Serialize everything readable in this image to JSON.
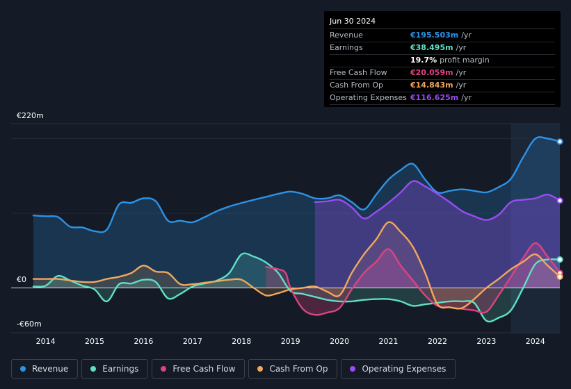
{
  "tooltip": {
    "date": "Jun 30 2024",
    "rows": [
      {
        "label": "Revenue",
        "value": "€195.503m",
        "unit": "/yr",
        "color": "#2d93e6"
      },
      {
        "label": "Earnings",
        "value": "€38.495m",
        "unit": "/yr",
        "color": "#5fe0c5"
      },
      {
        "label": "",
        "value": "19.7%",
        "unit": "profit margin",
        "color": "#ffffff"
      },
      {
        "label": "Free Cash Flow",
        "value": "€20.059m",
        "unit": "/yr",
        "color": "#d9457f"
      },
      {
        "label": "Cash From Op",
        "value": "€14.843m",
        "unit": "/yr",
        "color": "#f0a85c"
      },
      {
        "label": "Operating Expenses",
        "value": "€116.625m",
        "unit": "/yr",
        "color": "#9b4bf2"
      }
    ]
  },
  "legend": [
    {
      "label": "Revenue",
      "color": "#2d93e6"
    },
    {
      "label": "Earnings",
      "color": "#5fe0c5"
    },
    {
      "label": "Free Cash Flow",
      "color": "#d9457f"
    },
    {
      "label": "Cash From Op",
      "color": "#f0a85c"
    },
    {
      "label": "Operating Expenses",
      "color": "#9b4bf2"
    }
  ],
  "chart_data": {
    "type": "area",
    "title": "",
    "ylabels": {
      "top": "€220m",
      "zero": "€0",
      "bottom": "-€60m"
    },
    "ylim": [
      -60,
      220
    ],
    "xlim": [
      2013.75,
      2024.5
    ],
    "x_ticks": [
      2014,
      2015,
      2016,
      2017,
      2018,
      2019,
      2020,
      2021,
      2022,
      2023,
      2024
    ],
    "x_tick_labels": [
      "2014",
      "2015",
      "2016",
      "2017",
      "2018",
      "2019",
      "2020",
      "2021",
      "2022",
      "2023",
      "2024"
    ],
    "highlight_start": 2023.5,
    "series": [
      {
        "name": "Revenue",
        "color": "#2d93e6",
        "points": [
          [
            2013.75,
            97
          ],
          [
            2014.0,
            96
          ],
          [
            2014.25,
            95
          ],
          [
            2014.5,
            82
          ],
          [
            2014.75,
            81
          ],
          [
            2015.0,
            76
          ],
          [
            2015.25,
            78
          ],
          [
            2015.5,
            112
          ],
          [
            2015.75,
            114
          ],
          [
            2016.0,
            120
          ],
          [
            2016.25,
            116
          ],
          [
            2016.5,
            90
          ],
          [
            2016.75,
            90
          ],
          [
            2017.0,
            88
          ],
          [
            2017.25,
            95
          ],
          [
            2017.5,
            103
          ],
          [
            2017.75,
            109
          ],
          [
            2017.9,
            112
          ],
          [
            2018.25,
            118
          ],
          [
            2018.5,
            122
          ],
          [
            2018.75,
            126
          ],
          [
            2019.0,
            129
          ],
          [
            2019.25,
            126
          ],
          [
            2019.5,
            120
          ],
          [
            2019.75,
            120
          ],
          [
            2020.0,
            124
          ],
          [
            2020.25,
            115
          ],
          [
            2020.5,
            105
          ],
          [
            2020.75,
            125
          ],
          [
            2021.0,
            145
          ],
          [
            2021.25,
            158
          ],
          [
            2021.5,
            166
          ],
          [
            2021.75,
            145
          ],
          [
            2022.0,
            128
          ],
          [
            2022.25,
            130
          ],
          [
            2022.5,
            132
          ],
          [
            2022.75,
            130
          ],
          [
            2023.0,
            128
          ],
          [
            2023.25,
            135
          ],
          [
            2023.5,
            146
          ],
          [
            2023.75,
            175
          ],
          [
            2024.0,
            200
          ],
          [
            2024.25,
            200
          ],
          [
            2024.5,
            196
          ]
        ]
      },
      {
        "name": "Earnings",
        "color": "#5fe0c5",
        "points": [
          [
            2013.75,
            2
          ],
          [
            2014.0,
            3
          ],
          [
            2014.25,
            16
          ],
          [
            2014.5,
            10
          ],
          [
            2014.75,
            3
          ],
          [
            2015.0,
            -2
          ],
          [
            2015.25,
            -18
          ],
          [
            2015.5,
            5
          ],
          [
            2015.75,
            6
          ],
          [
            2016.0,
            11
          ],
          [
            2016.25,
            8
          ],
          [
            2016.5,
            -14
          ],
          [
            2016.75,
            -8
          ],
          [
            2017.0,
            2
          ],
          [
            2017.25,
            6
          ],
          [
            2017.5,
            10
          ],
          [
            2017.75,
            20
          ],
          [
            2018.0,
            45
          ],
          [
            2018.25,
            42
          ],
          [
            2018.5,
            34
          ],
          [
            2018.75,
            20
          ],
          [
            2019.0,
            -4
          ],
          [
            2019.25,
            -8
          ],
          [
            2019.5,
            -12
          ],
          [
            2019.75,
            -16
          ],
          [
            2020.0,
            -18
          ],
          [
            2020.25,
            -18
          ],
          [
            2020.5,
            -16
          ],
          [
            2020.75,
            -15
          ],
          [
            2021.0,
            -15
          ],
          [
            2021.25,
            -18
          ],
          [
            2021.5,
            -24
          ],
          [
            2021.75,
            -22
          ],
          [
            2022.0,
            -20
          ],
          [
            2022.25,
            -18
          ],
          [
            2022.5,
            -18
          ],
          [
            2022.75,
            -20
          ],
          [
            2023.0,
            -44
          ],
          [
            2023.25,
            -40
          ],
          [
            2023.5,
            -30
          ],
          [
            2023.75,
            0
          ],
          [
            2024.0,
            32
          ],
          [
            2024.25,
            38
          ],
          [
            2024.5,
            38
          ]
        ]
      },
      {
        "name": "Free Cash Flow",
        "color": "#d9457f",
        "points": [
          [
            2018.5,
            28
          ],
          [
            2018.75,
            25
          ],
          [
            2018.9,
            20
          ],
          [
            2019.0,
            0
          ],
          [
            2019.25,
            -28
          ],
          [
            2019.5,
            -36
          ],
          [
            2019.75,
            -33
          ],
          [
            2020.0,
            -27
          ],
          [
            2020.25,
            -2
          ],
          [
            2020.5,
            20
          ],
          [
            2020.75,
            35
          ],
          [
            2021.0,
            52
          ],
          [
            2021.25,
            30
          ],
          [
            2021.5,
            10
          ],
          [
            2021.75,
            -10
          ],
          [
            2022.0,
            -24
          ],
          [
            2022.25,
            -26
          ],
          [
            2022.5,
            -28
          ],
          [
            2022.75,
            -30
          ],
          [
            2023.0,
            -32
          ],
          [
            2023.25,
            -10
          ],
          [
            2023.5,
            15
          ],
          [
            2023.75,
            40
          ],
          [
            2024.0,
            60
          ],
          [
            2024.25,
            42
          ],
          [
            2024.5,
            20
          ]
        ]
      },
      {
        "name": "Cash From Op",
        "color": "#f0a85c",
        "points": [
          [
            2013.75,
            12
          ],
          [
            2014.0,
            12
          ],
          [
            2014.25,
            12
          ],
          [
            2014.5,
            10
          ],
          [
            2014.75,
            8
          ],
          [
            2015.0,
            8
          ],
          [
            2015.25,
            12
          ],
          [
            2015.5,
            15
          ],
          [
            2015.75,
            20
          ],
          [
            2016.0,
            30
          ],
          [
            2016.25,
            22
          ],
          [
            2016.5,
            20
          ],
          [
            2016.75,
            5
          ],
          [
            2017.0,
            5
          ],
          [
            2017.25,
            7
          ],
          [
            2017.5,
            9
          ],
          [
            2017.75,
            11
          ],
          [
            2018.0,
            11
          ],
          [
            2018.25,
            0
          ],
          [
            2018.5,
            -10
          ],
          [
            2018.75,
            -7
          ],
          [
            2019.0,
            -2
          ],
          [
            2019.25,
            0
          ],
          [
            2019.5,
            2
          ],
          [
            2019.75,
            -5
          ],
          [
            2020.0,
            -10
          ],
          [
            2020.25,
            20
          ],
          [
            2020.5,
            45
          ],
          [
            2020.75,
            65
          ],
          [
            2021.0,
            88
          ],
          [
            2021.25,
            75
          ],
          [
            2021.5,
            55
          ],
          [
            2021.75,
            20
          ],
          [
            2022.0,
            -22
          ],
          [
            2022.25,
            -26
          ],
          [
            2022.5,
            -27
          ],
          [
            2022.75,
            -15
          ],
          [
            2023.0,
            0
          ],
          [
            2023.25,
            12
          ],
          [
            2023.5,
            25
          ],
          [
            2023.75,
            35
          ],
          [
            2024.0,
            45
          ],
          [
            2024.25,
            30
          ],
          [
            2024.5,
            15
          ]
        ]
      },
      {
        "name": "Operating Expenses",
        "color": "#9b4bf2",
        "points": [
          [
            2019.5,
            115
          ],
          [
            2019.75,
            116
          ],
          [
            2020.0,
            118
          ],
          [
            2020.25,
            108
          ],
          [
            2020.5,
            93
          ],
          [
            2020.75,
            102
          ],
          [
            2021.0,
            114
          ],
          [
            2021.25,
            128
          ],
          [
            2021.5,
            143
          ],
          [
            2021.75,
            136
          ],
          [
            2022.0,
            126
          ],
          [
            2022.25,
            115
          ],
          [
            2022.5,
            103
          ],
          [
            2022.75,
            96
          ],
          [
            2023.0,
            91
          ],
          [
            2023.25,
            98
          ],
          [
            2023.5,
            115
          ],
          [
            2023.75,
            118
          ],
          [
            2024.0,
            120
          ],
          [
            2024.25,
            125
          ],
          [
            2024.5,
            117
          ]
        ]
      }
    ]
  }
}
